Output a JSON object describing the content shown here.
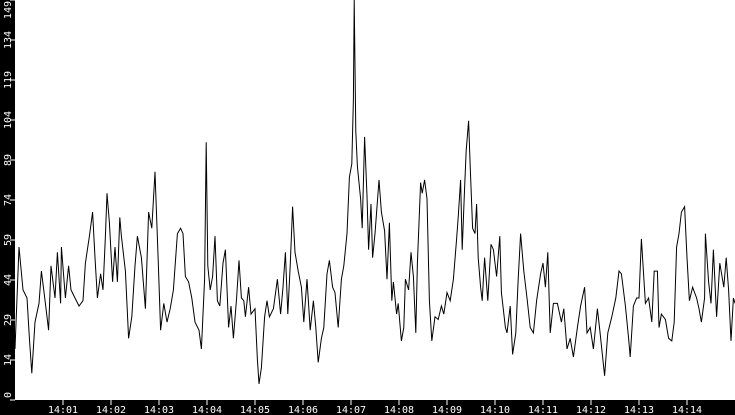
{
  "chart_data": {
    "type": "line",
    "title": "",
    "xlabel": "",
    "ylabel": "",
    "xlim": [
      "14:00:00",
      "14:15:00"
    ],
    "ylim": [
      0,
      149
    ],
    "grid": false,
    "legend": "none",
    "colors": {
      "background": "#ffffff",
      "frame": "#000000",
      "line": "#000000",
      "ticks": "#ffffff"
    },
    "xticks": [
      {
        "time": "14:01:00",
        "label": "14:01"
      },
      {
        "time": "14:02:00",
        "label": "14:02"
      },
      {
        "time": "14:03:00",
        "label": "14:03"
      },
      {
        "time": "14:04:00",
        "label": "14:04"
      },
      {
        "time": "14:05:00",
        "label": "14:05"
      },
      {
        "time": "14:06:00",
        "label": "14:06"
      },
      {
        "time": "14:07:00",
        "label": "14:07"
      },
      {
        "time": "14:08:00",
        "label": "14:08"
      },
      {
        "time": "14:09:00",
        "label": "14:09"
      },
      {
        "time": "14:10:00",
        "label": "14:10"
      },
      {
        "time": "14:11:00",
        "label": "14:11"
      },
      {
        "time": "14:12:00",
        "label": "14:12"
      },
      {
        "time": "14:13:00",
        "label": "14:13"
      },
      {
        "time": "14:14:00",
        "label": "14:14"
      }
    ],
    "yticks": [
      {
        "value": 0,
        "label": "0"
      },
      {
        "value": 14.9,
        "label": "14"
      },
      {
        "value": 29.8,
        "label": "29"
      },
      {
        "value": 44.7,
        "label": "44"
      },
      {
        "value": 59.6,
        "label": "59"
      },
      {
        "value": 74.5,
        "label": "74"
      },
      {
        "value": 89.4,
        "label": "89"
      },
      {
        "value": 104.3,
        "label": "104"
      },
      {
        "value": 119.2,
        "label": "119"
      },
      {
        "value": 134.1,
        "label": "134"
      },
      {
        "value": 149,
        "label": "149"
      }
    ],
    "series": [
      {
        "x": [
          "14:00:00",
          "14:00:05",
          "14:00:10",
          "14:00:15",
          "14:00:18",
          "14:00:21",
          "14:00:25",
          "14:00:30",
          "14:00:33",
          "14:00:38",
          "14:00:42",
          "14:00:45",
          "14:00:50",
          "14:00:53",
          "14:00:57",
          "14:00:58",
          "14:01:03",
          "14:01:07",
          "14:01:10",
          "14:01:15",
          "14:01:20",
          "14:01:25",
          "14:01:28",
          "14:01:33",
          "14:01:37",
          "14:01:40",
          "14:01:43",
          "14:01:47",
          "14:01:50",
          "14:01:53",
          "14:01:55",
          "14:01:58",
          "14:02:02",
          "14:02:05",
          "14:02:08",
          "14:02:11",
          "14:02:13",
          "14:02:18",
          "14:02:22",
          "14:02:26",
          "14:02:30",
          "14:02:33",
          "14:02:38",
          "14:02:43",
          "14:02:47",
          "14:02:51",
          "14:02:55",
          "14:02:59",
          "14:03:02",
          "14:03:06",
          "14:03:10",
          "14:03:14",
          "14:03:18",
          "14:03:23",
          "14:03:27",
          "14:03:30",
          "14:03:33",
          "14:03:37",
          "14:03:41",
          "14:03:45",
          "14:03:50",
          "14:03:53",
          "14:03:57",
          "14:03:59",
          "14:04:01",
          "14:04:04",
          "14:04:07",
          "14:04:10",
          "14:04:13",
          "14:04:16",
          "14:04:20",
          "14:04:23",
          "14:04:27",
          "14:04:30",
          "14:04:33",
          "14:04:37",
          "14:04:40",
          "14:04:43",
          "14:04:46",
          "14:04:48",
          "14:04:52",
          "14:04:55",
          "14:05:00",
          "14:05:03",
          "14:05:05",
          "14:05:08",
          "14:05:12",
          "14:05:15",
          "14:05:18",
          "14:05:23",
          "14:05:28",
          "14:05:32",
          "14:05:35",
          "14:05:38",
          "14:05:41",
          "14:05:44",
          "14:05:47",
          "14:05:50",
          "14:05:54",
          "14:05:58",
          "14:06:01",
          "14:06:05",
          "14:06:09",
          "14:06:13",
          "14:06:16",
          "14:06:19",
          "14:06:23",
          "14:06:26",
          "14:06:30",
          "14:06:33",
          "14:06:37",
          "14:06:40",
          "14:06:44",
          "14:06:48",
          "14:06:51",
          "14:06:55",
          "14:06:58",
          "14:07:01",
          "14:07:03",
          "14:07:04",
          "14:07:06",
          "14:07:08",
          "14:07:12",
          "14:07:14",
          "14:07:17",
          "14:07:20",
          "14:07:22",
          "14:07:25",
          "14:07:27",
          "14:07:30",
          "14:07:35",
          "14:07:38",
          "14:07:42",
          "14:07:45",
          "14:07:48",
          "14:07:51",
          "14:07:53",
          "14:07:57",
          "14:07:59",
          "14:08:03",
          "14:08:06",
          "14:08:08",
          "14:08:12",
          "14:08:15",
          "14:08:18",
          "14:08:21",
          "14:08:23",
          "14:08:27",
          "14:08:29",
          "14:08:32",
          "14:08:35",
          "14:08:38",
          "14:08:41",
          "14:08:45",
          "14:08:49",
          "14:08:53",
          "14:08:56",
          "14:09:00",
          "14:09:04",
          "14:09:08",
          "14:09:12",
          "14:09:14",
          "14:09:17",
          "14:09:19",
          "14:09:22",
          "14:09:24",
          "14:09:27",
          "14:09:29",
          "14:09:32",
          "14:09:35",
          "14:09:37",
          "14:09:39",
          "14:09:42",
          "14:09:44",
          "14:09:47",
          "14:09:51",
          "14:09:55",
          "14:09:58",
          "14:10:02",
          "14:10:06",
          "14:10:08",
          "14:10:13",
          "14:10:15",
          "14:10:19",
          "14:10:22",
          "14:10:26",
          "14:10:29",
          "14:10:32",
          "14:10:36",
          "14:10:40",
          "14:10:44",
          "14:10:48",
          "14:10:52",
          "14:10:57",
          "14:11:00",
          "14:11:03",
          "14:11:06",
          "14:11:09",
          "14:11:13",
          "14:11:18",
          "14:11:23",
          "14:11:26",
          "14:11:30",
          "14:11:34",
          "14:11:38",
          "14:11:43",
          "14:11:47",
          "14:11:52",
          "14:11:55",
          "14:11:59",
          "14:12:03",
          "14:12:08",
          "14:12:11",
          "14:12:17",
          "14:12:21",
          "14:12:26",
          "14:12:31",
          "14:12:35",
          "14:12:38",
          "14:12:43",
          "14:12:47",
          "14:12:49",
          "14:12:53",
          "14:12:57",
          "14:13:00",
          "14:13:03",
          "14:13:08",
          "14:13:12",
          "14:13:16",
          "14:13:19",
          "14:13:23",
          "14:13:25",
          "14:13:28",
          "14:13:33",
          "14:13:37",
          "14:13:41",
          "14:13:44",
          "14:13:47",
          "14:13:50",
          "14:13:53",
          "14:13:57",
          "14:14:00",
          "14:14:03",
          "14:14:07",
          "14:14:12",
          "14:14:15",
          "14:14:18",
          "14:14:22",
          "14:14:23",
          "14:14:27",
          "14:14:30",
          "14:14:33",
          "14:14:37",
          "14:14:41",
          "14:14:46",
          "14:14:49",
          "14:14:52",
          "14:14:55",
          "14:14:58",
          "14:15:00"
        ],
        "y": [
          19,
          57,
          41,
          38,
          23,
          10,
          29,
          36,
          48,
          36,
          26,
          50,
          38,
          55,
          36,
          57,
          38,
          50,
          41,
          38,
          35,
          37,
          51,
          61,
          70,
          53,
          38,
          47,
          41,
          61,
          77,
          66,
          44,
          57,
          44,
          68,
          61,
          48,
          23,
          31,
          50,
          61,
          53,
          34,
          70,
          64,
          85,
          52,
          26,
          36,
          29,
          34,
          41,
          62,
          64,
          62,
          46,
          44,
          38,
          29,
          26,
          19,
          45,
          96,
          50,
          41,
          46,
          61,
          37,
          35,
          51,
          56,
          27,
          35,
          23,
          38,
          52,
          38,
          37,
          31,
          42,
          32,
          34,
          15,
          6,
          12,
          31,
          37,
          31,
          34,
          45,
          32,
          42,
          55,
          32,
          50,
          72,
          55,
          48,
          42,
          29,
          45,
          26,
          37,
          27,
          14,
          23,
          27,
          47,
          52,
          42,
          40,
          27,
          45,
          50,
          62,
          83,
          88,
          112,
          149,
          100,
          87,
          75,
          64,
          98,
          76,
          56,
          73,
          53,
          62,
          82,
          70,
          63,
          45,
          66,
          37,
          44,
          32,
          36,
          22,
          27,
          45,
          41,
          55,
          46,
          25,
          51,
          81,
          77,
          82,
          75,
          37,
          22,
          31,
          30,
          35,
          32,
          40,
          37,
          45,
          60,
          68,
          82,
          56,
          79,
          93,
          104,
          87,
          64,
          62,
          73,
          53,
          42,
          37,
          53,
          37,
          58,
          56,
          46,
          61,
          40,
          27,
          25,
          35,
          17,
          25,
          45,
          62,
          48,
          38,
          27,
          25,
          37,
          47,
          51,
          42,
          55,
          25,
          36,
          36,
          29,
          34,
          19,
          23,
          16,
          27,
          35,
          42,
          25,
          27,
          19,
          34,
          26,
          9,
          25,
          31,
          38,
          48,
          47,
          35,
          23,
          16,
          35,
          38,
          38,
          60,
          36,
          38,
          29,
          48,
          48,
          27,
          32,
          30,
          23,
          22,
          29,
          57,
          62,
          70,
          72,
          53,
          37,
          42,
          38,
          34,
          29,
          38,
          62,
          44,
          36,
          56,
          31,
          51,
          42,
          53,
          41,
          22,
          38,
          36
        ]
      }
    ]
  }
}
